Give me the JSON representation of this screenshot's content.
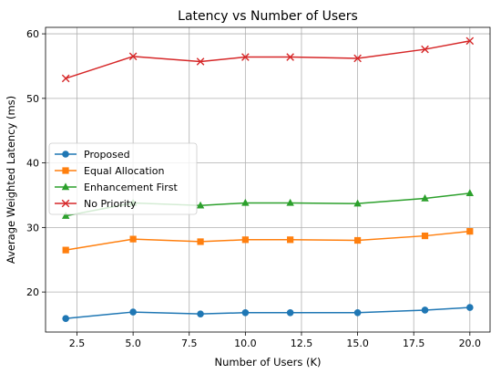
{
  "chart_data": {
    "type": "line",
    "title": "Latency vs Number of Users",
    "xlabel": "Number of Users (K)",
    "ylabel": "Average Weighted Latency (ms)",
    "xlim": [
      1.1,
      20.9
    ],
    "ylim": [
      13.8,
      61.0
    ],
    "xticks": [
      2.5,
      5.0,
      7.5,
      10.0,
      12.5,
      15.0,
      17.5,
      20.0
    ],
    "xtick_labels": [
      "2.5",
      "5.0",
      "7.5",
      "10.0",
      "12.5",
      "15.0",
      "17.5",
      "20.0"
    ],
    "yticks": [
      20,
      30,
      40,
      50,
      60
    ],
    "ytick_labels": [
      "20",
      "30",
      "40",
      "50",
      "60"
    ],
    "grid": true,
    "legend_position": "center-left",
    "x": [
      2,
      5,
      8,
      10,
      12,
      15,
      18,
      20
    ],
    "series": [
      {
        "name": "Proposed",
        "color": "#1f77b4",
        "marker": "circle",
        "values": [
          15.9,
          16.9,
          16.6,
          16.8,
          16.8,
          16.8,
          17.2,
          17.6
        ]
      },
      {
        "name": "Equal Allocation",
        "color": "#ff7f0e",
        "marker": "square",
        "values": [
          26.5,
          28.2,
          27.8,
          28.1,
          28.1,
          28.0,
          28.7,
          29.4
        ]
      },
      {
        "name": "Enhancement First",
        "color": "#2ca02c",
        "marker": "triangle",
        "values": [
          31.8,
          33.8,
          33.4,
          33.8,
          33.8,
          33.7,
          34.5,
          35.3
        ]
      },
      {
        "name": "No Priority",
        "color": "#d62728",
        "marker": "x",
        "values": [
          53.1,
          56.5,
          55.7,
          56.4,
          56.4,
          56.2,
          57.6,
          58.9
        ]
      }
    ]
  }
}
